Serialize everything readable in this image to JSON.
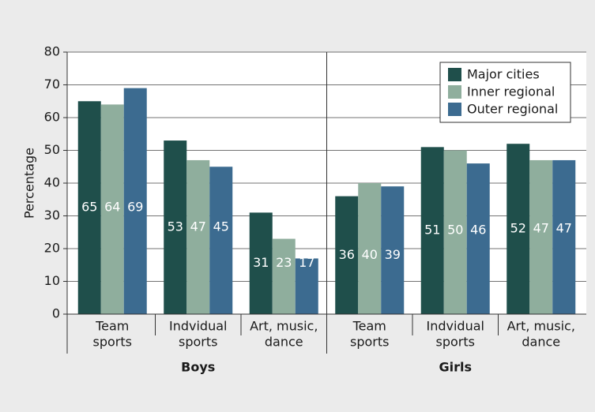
{
  "chart_data": {
    "type": "bar",
    "y_label": "Percentage",
    "categories": [
      [
        "Team",
        "sports"
      ],
      [
        "Indvidual",
        "sports"
      ],
      [
        "Art, music,",
        "dance"
      ],
      [
        "Team",
        "sports"
      ],
      [
        "Indvidual",
        "sports"
      ],
      [
        "Art, music,",
        "dance"
      ]
    ],
    "groups": [
      "Boys",
      "Girls"
    ],
    "series": [
      {
        "name": "Major cities",
        "color": "#1f4f4b",
        "values": [
          65,
          53,
          31,
          36,
          51,
          52
        ]
      },
      {
        "name": "Inner regional",
        "color": "#8fae9d",
        "values": [
          64,
          47,
          23,
          40,
          50,
          47
        ]
      },
      {
        "name": "Outer regional",
        "color": "#3c6b90",
        "values": [
          69,
          45,
          17,
          39,
          46,
          47
        ]
      }
    ],
    "ylim": [
      0,
      80
    ],
    "yticks": [
      0,
      10,
      20,
      30,
      40,
      50,
      60,
      70,
      80
    ],
    "grid": true,
    "legend": "upper right"
  }
}
